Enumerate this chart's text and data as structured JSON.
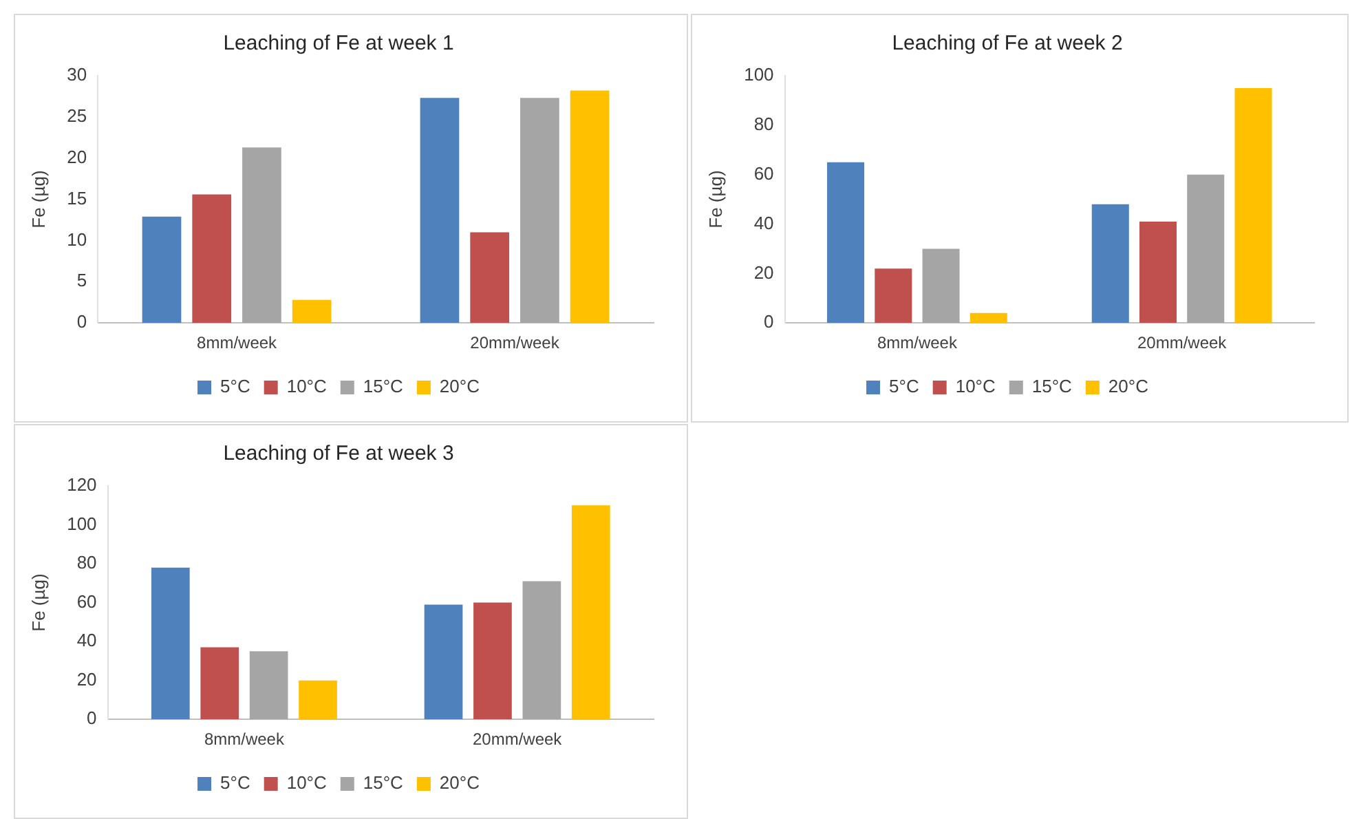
{
  "chart_data": [
    {
      "type": "bar",
      "title": "Leaching of Fe at week 1",
      "ylabel": "Fe (µg)",
      "categories": [
        "8mm/week",
        "20mm/week"
      ],
      "series": [
        {
          "name": "5°C",
          "color": "#4f81bd",
          "values": [
            12.9,
            27.3
          ]
        },
        {
          "name": "10°C",
          "color": "#c0504d",
          "values": [
            15.6,
            11.0
          ]
        },
        {
          "name": "15°C",
          "color": "#a5a5a5",
          "values": [
            21.3,
            27.3
          ]
        },
        {
          "name": "20°C",
          "color": "#ffc000",
          "values": [
            2.8,
            28.2
          ]
        }
      ],
      "ylim": [
        0,
        30
      ],
      "yticks": [
        0,
        5,
        10,
        15,
        20,
        25,
        30
      ],
      "grid": false,
      "legend": "bottom"
    },
    {
      "type": "bar",
      "title": "Leaching of Fe at week 2",
      "ylabel": "Fe (µg)",
      "categories": [
        "8mm/week",
        "20mm/week"
      ],
      "series": [
        {
          "name": "5°C",
          "color": "#4f81bd",
          "values": [
            65,
            48
          ]
        },
        {
          "name": "10°C",
          "color": "#c0504d",
          "values": [
            22,
            41
          ]
        },
        {
          "name": "15°C",
          "color": "#a5a5a5",
          "values": [
            30,
            60
          ]
        },
        {
          "name": "20°C",
          "color": "#ffc000",
          "values": [
            4,
            95
          ]
        }
      ],
      "ylim": [
        0,
        100
      ],
      "yticks": [
        0,
        20,
        40,
        60,
        80,
        100
      ],
      "grid": false,
      "legend": "bottom"
    },
    {
      "type": "bar",
      "title": "Leaching of Fe at week 3",
      "ylabel": "Fe (µg)",
      "categories": [
        "8mm/week",
        "20mm/week"
      ],
      "series": [
        {
          "name": "5°C",
          "color": "#4f81bd",
          "values": [
            78,
            59
          ]
        },
        {
          "name": "10°C",
          "color": "#c0504d",
          "values": [
            37,
            60
          ]
        },
        {
          "name": "15°C",
          "color": "#a5a5a5",
          "values": [
            35,
            71
          ]
        },
        {
          "name": "20°C",
          "color": "#ffc000",
          "values": [
            20,
            110
          ]
        }
      ],
      "ylim": [
        0,
        120
      ],
      "yticks": [
        0,
        20,
        40,
        60,
        80,
        100,
        120
      ],
      "grid": false,
      "legend": "bottom"
    }
  ]
}
